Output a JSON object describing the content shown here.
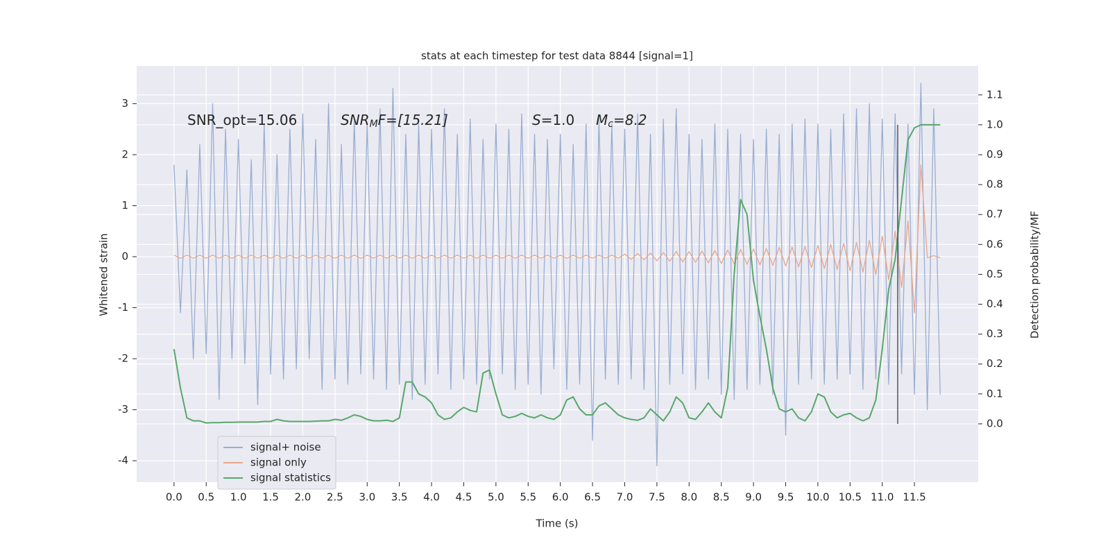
{
  "chart_data": {
    "type": "line",
    "title": "stats at each timestep for test data 8844 [signal=1]",
    "xlabel": "Time (s)",
    "ylabel": "Whitened strain",
    "y2label": "Detection probability/MF",
    "xlim": [
      -0.58,
      12.49
    ],
    "ylim": [
      -4.42,
      3.74
    ],
    "y2lim": [
      -0.195,
      1.197
    ],
    "xticks": [
      {
        "value": 0,
        "label": "0.0"
      },
      0.5,
      {
        "value": 1,
        "label": "1.0"
      },
      1.5,
      {
        "value": 2,
        "label": "2.0"
      },
      2.5,
      {
        "value": 3,
        "label": "3.0"
      },
      3.5,
      {
        "value": 4,
        "label": "4.0"
      },
      4.5,
      {
        "value": 5,
        "label": "5.0"
      },
      5.5,
      {
        "value": 6,
        "label": "6.0"
      },
      6.5,
      {
        "value": 7,
        "label": "7.0"
      },
      7.5,
      {
        "value": 8,
        "label": "8.0"
      },
      8.5,
      {
        "value": 9,
        "label": "9.0"
      },
      9.5,
      {
        "value": 10,
        "label": "10.0"
      },
      10.5,
      {
        "value": 11,
        "label": "11.0"
      },
      11.5
    ],
    "yticks": [
      -4,
      -3,
      -2,
      -1,
      0,
      1,
      2,
      3
    ],
    "y2ticks": [
      {
        "value": 0,
        "label": "0.0"
      },
      0.1,
      0.2,
      0.3,
      0.4,
      0.5,
      0.6,
      0.7,
      0.8,
      0.9,
      {
        "value": 1,
        "label": "1.0"
      },
      1.1
    ],
    "grid": true,
    "legend": "lower left",
    "annotations": [
      {
        "text": "SNR_opt=15.06"
      },
      {
        "base": "SNR",
        "sub": "M",
        "rest": "F=[15.21]"
      },
      {
        "base": "S",
        "rest": "=1.0"
      },
      {
        "base": "M",
        "sub": "c",
        "rest": "=8.2"
      }
    ],
    "vline": {
      "x": 11.24,
      "ymin": 0,
      "ymax": 1,
      "axis": "y2",
      "color": "#555555"
    },
    "x": [
      0,
      0.1,
      0.2,
      0.3,
      0.4,
      0.5,
      0.6,
      0.7,
      0.8,
      0.9,
      1,
      1.1,
      1.2,
      1.3,
      1.4,
      1.5,
      1.6,
      1.7,
      1.8,
      1.9,
      2,
      2.1,
      2.2,
      2.3,
      2.4,
      2.5,
      2.6,
      2.7,
      2.8,
      2.9,
      3,
      3.1,
      3.2,
      3.3,
      3.4,
      3.5,
      3.6,
      3.7,
      3.8,
      3.9,
      4,
      4.1,
      4.2,
      4.3,
      4.4,
      4.5,
      4.6,
      4.7,
      4.8,
      4.9,
      5,
      5.1,
      5.2,
      5.3,
      5.4,
      5.5,
      5.6,
      5.7,
      5.8,
      5.9,
      6,
      6.1,
      6.2,
      6.3,
      6.4,
      6.5,
      6.6,
      6.7,
      6.8,
      6.9,
      7,
      7.1,
      7.2,
      7.3,
      7.4,
      7.5,
      7.6,
      7.7,
      7.8,
      7.9,
      8,
      8.1,
      8.2,
      8.3,
      8.4,
      8.5,
      8.6,
      8.7,
      8.8,
      8.9,
      9,
      9.1,
      9.2,
      9.3,
      9.4,
      9.5,
      9.6,
      9.7,
      9.8,
      9.9,
      10,
      10.1,
      10.2,
      10.3,
      10.4,
      10.5,
      10.6,
      10.7,
      10.8,
      10.9,
      11,
      11.1,
      11.2,
      11.3,
      11.4,
      11.5,
      11.6,
      11.7,
      11.8,
      11.9
    ],
    "series": [
      {
        "name": "signal+ noise",
        "color": "#9aaed2",
        "values": [
          1.8,
          -1.1,
          1.7,
          -2.0,
          2.2,
          -1.9,
          3.0,
          -2.8,
          2.5,
          -2.0,
          2.3,
          -2.1,
          1.9,
          -2.9,
          2.6,
          -2.3,
          2.0,
          -2.4,
          2.5,
          -2.2,
          2.8,
          -2.0,
          2.3,
          -2.6,
          3.0,
          -2.4,
          2.2,
          -2.5,
          2.7,
          -2.3,
          2.6,
          -2.4,
          2.9,
          -2.6,
          3.3,
          -2.5,
          2.4,
          -2.8,
          2.6,
          -2.5,
          2.5,
          -2.3,
          2.9,
          -2.6,
          2.4,
          -2.4,
          2.7,
          -2.5,
          2.3,
          -2.4,
          2.6,
          -2.3,
          2.5,
          -2.6,
          2.8,
          -2.5,
          2.4,
          -2.7,
          2.3,
          -2.2,
          2.4,
          -2.6,
          2.2,
          -2.5,
          2.6,
          -3.6,
          2.7,
          -2.4,
          2.6,
          -2.5,
          2.5,
          -2.4,
          2.8,
          -2.6,
          2.4,
          -4.1,
          2.7,
          -2.5,
          2.9,
          -2.3,
          2.4,
          -2.6,
          2.3,
          -2.4,
          2.6,
          -2.7,
          2.5,
          -2.8,
          2.4,
          -2.6,
          2.3,
          -2.5,
          2.5,
          -2.7,
          2.4,
          -3.5,
          2.6,
          -2.5,
          2.7,
          -2.4,
          2.6,
          -2.5,
          2.5,
          -2.4,
          2.8,
          -2.3,
          2.9,
          -2.6,
          3.0,
          -2.4,
          2.7,
          -2.5,
          2.8,
          -2.3,
          2.6,
          -2.7,
          3.4,
          -3.0,
          2.9,
          -2.7
        ]
      },
      {
        "name": "signal only",
        "color": "#e8a68a",
        "values": [
          0.03,
          -0.03,
          0.03,
          -0.03,
          0.03,
          -0.03,
          0.03,
          -0.03,
          0.03,
          -0.03,
          0.03,
          -0.03,
          0.03,
          -0.03,
          0.03,
          -0.03,
          0.03,
          -0.03,
          0.03,
          -0.03,
          0.03,
          -0.03,
          0.03,
          -0.03,
          0.03,
          -0.03,
          0.03,
          -0.03,
          0.03,
          -0.03,
          0.03,
          -0.03,
          0.03,
          -0.03,
          0.03,
          -0.03,
          0.03,
          -0.03,
          0.03,
          -0.03,
          0.03,
          -0.03,
          0.03,
          -0.03,
          0.03,
          -0.03,
          0.03,
          -0.03,
          0.03,
          -0.03,
          0.03,
          -0.03,
          0.03,
          -0.03,
          0.03,
          -0.03,
          0.03,
          -0.03,
          0.03,
          -0.03,
          0.03,
          -0.03,
          0.03,
          -0.03,
          0.03,
          -0.03,
          0.03,
          -0.03,
          0.03,
          -0.03,
          0.05,
          -0.05,
          0.06,
          -0.06,
          0.07,
          -0.08,
          0.08,
          -0.09,
          0.1,
          -0.1,
          0.1,
          -0.11,
          0.11,
          -0.12,
          0.12,
          -0.13,
          0.13,
          -0.14,
          0.14,
          -0.15,
          0.15,
          -0.16,
          0.16,
          -0.17,
          0.18,
          -0.18,
          0.19,
          -0.2,
          0.2,
          -0.21,
          0.22,
          -0.23,
          0.24,
          -0.25,
          0.26,
          -0.27,
          0.28,
          -0.3,
          0.32,
          -0.35,
          0.4,
          -0.45,
          0.5,
          -0.6,
          0.7,
          -1.1,
          1.8,
          -0.02,
          0.02,
          -0.02
        ]
      },
      {
        "name": "signal statistics",
        "color": "#55a868",
        "axis": "y2",
        "values": [
          0.25,
          0.12,
          0.02,
          0.01,
          0.01,
          0.003,
          0.004,
          0.004,
          0.005,
          0.005,
          0.006,
          0.006,
          0.006,
          0.006,
          0.008,
          0.008,
          0.015,
          0.01,
          0.008,
          0.008,
          0.008,
          0.008,
          0.009,
          0.01,
          0.01,
          0.015,
          0.012,
          0.02,
          0.03,
          0.025,
          0.015,
          0.01,
          0.01,
          0.012,
          0.008,
          0.02,
          0.14,
          0.14,
          0.1,
          0.09,
          0.07,
          0.03,
          0.015,
          0.02,
          0.04,
          0.055,
          0.045,
          0.04,
          0.17,
          0.18,
          0.1,
          0.03,
          0.02,
          0.025,
          0.035,
          0.025,
          0.02,
          0.03,
          0.02,
          0.015,
          0.03,
          0.08,
          0.09,
          0.05,
          0.03,
          0.03,
          0.06,
          0.07,
          0.05,
          0.03,
          0.02,
          0.015,
          0.012,
          0.02,
          0.05,
          0.03,
          0.01,
          0.04,
          0.09,
          0.07,
          0.02,
          0.015,
          0.04,
          0.07,
          0.04,
          0.02,
          0.12,
          0.5,
          0.75,
          0.7,
          0.48,
          0.36,
          0.25,
          0.12,
          0.05,
          0.04,
          0.05,
          0.02,
          0.01,
          0.04,
          0.1,
          0.09,
          0.04,
          0.02,
          0.03,
          0.035,
          0.02,
          0.01,
          0.02,
          0.08,
          0.25,
          0.45,
          0.55,
          0.75,
          0.95,
          0.99,
          1.0,
          1.0,
          1.0,
          1.0
        ]
      }
    ]
  }
}
